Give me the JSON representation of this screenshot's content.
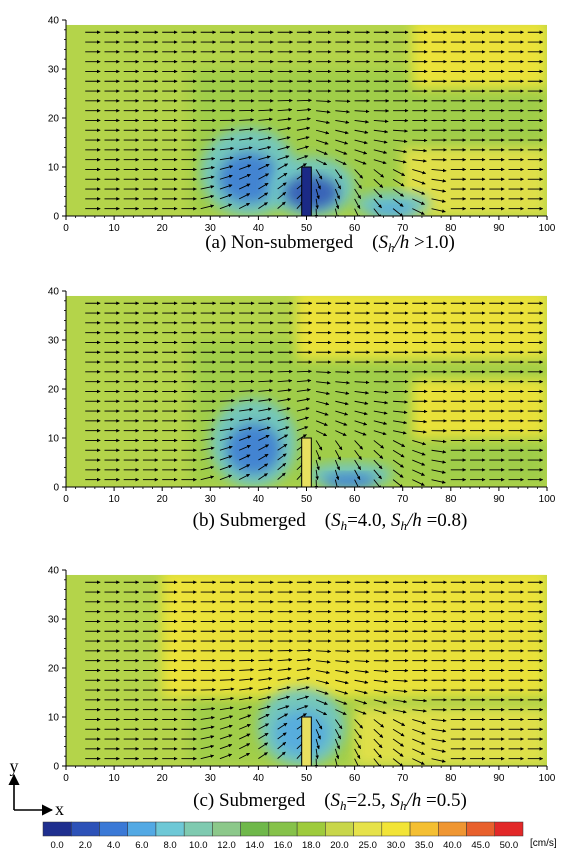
{
  "panels": [
    {
      "caption": {
        "pre": "(a) Non-submerged　(",
        "var": "S",
        "sub": "h",
        "post_var": "/h",
        "rest": " >1.0)"
      },
      "chart_data": {
        "type": "heatmap",
        "plot": "velocity vector field over contour",
        "xlim": [
          0,
          100
        ],
        "ylim": [
          0,
          40
        ],
        "xticks": [
          0,
          10,
          20,
          30,
          40,
          50,
          60,
          70,
          80,
          90,
          100
        ],
        "yticks": [
          0,
          10,
          20,
          30,
          40
        ],
        "obstacle": {
          "x": [
            49,
            51
          ],
          "y": [
            0,
            10
          ],
          "color": "#1b2a86"
        },
        "low_zones": [
          {
            "x": [
              28,
              48
            ],
            "y": [
              0,
              18
            ],
            "value": 4
          },
          {
            "x": [
              42,
              60
            ],
            "y": [
              0,
              12
            ],
            "value": 2
          },
          {
            "x": [
              60,
              76
            ],
            "y": [
              0,
              5
            ],
            "value": 6
          }
        ],
        "high_zones": [
          {
            "x": [
              72,
              100
            ],
            "y": [
              26,
              40
            ],
            "value": 30
          },
          {
            "x": [
              70,
              100
            ],
            "y": [
              0,
              14
            ],
            "value": 25
          }
        ]
      }
    },
    {
      "caption": {
        "pre": "(b) Submerged　(",
        "var": "S",
        "sub": "h",
        "mid": "=4.0, ",
        "var2": "S",
        "sub2": "h",
        "post_var": "/h",
        "rest": " =0.8)"
      },
      "chart_data": {
        "type": "heatmap",
        "plot": "velocity vector field over contour",
        "xlim": [
          0,
          100
        ],
        "ylim": [
          0,
          40
        ],
        "xticks": [
          0,
          10,
          20,
          30,
          40,
          50,
          60,
          70,
          80,
          90,
          100
        ],
        "yticks": [
          0,
          10,
          20,
          30,
          40
        ],
        "obstacle": {
          "x": [
            49,
            51
          ],
          "y": [
            0,
            10
          ],
          "color": "#e8e060"
        },
        "low_zones": [
          {
            "x": [
              30,
              48
            ],
            "y": [
              0,
              18
            ],
            "value": 5
          },
          {
            "x": [
              50,
              68
            ],
            "y": [
              0,
              5
            ],
            "value": 4
          }
        ],
        "high_zones": [
          {
            "x": [
              48,
              100
            ],
            "y": [
              26,
              40
            ],
            "value": 30
          },
          {
            "x": [
              72,
              100
            ],
            "y": [
              10,
              22
            ],
            "value": 30
          }
        ]
      }
    },
    {
      "caption": {
        "pre": "(c) Submerged　(",
        "var": "S",
        "sub": "h",
        "mid": "=2.5, ",
        "var2": "S",
        "sub2": "h",
        "post_var": "/h",
        "rest": " =0.5)"
      },
      "chart_data": {
        "type": "heatmap",
        "plot": "velocity vector field over contour",
        "xlim": [
          0,
          100
        ],
        "ylim": [
          0,
          40
        ],
        "xticks": [
          0,
          10,
          20,
          30,
          40,
          50,
          60,
          70,
          80,
          90,
          100
        ],
        "yticks": [
          0,
          10,
          20,
          30,
          40
        ],
        "obstacle": {
          "x": [
            49,
            51
          ],
          "y": [
            0,
            10
          ],
          "color": "#e8e060"
        },
        "low_zones": [
          {
            "x": [
              40,
              58
            ],
            "y": [
              0,
              16
            ],
            "value": 6
          }
        ],
        "high_zones": [
          {
            "x": [
              20,
              100
            ],
            "y": [
              14,
              40
            ],
            "value": 30
          },
          {
            "x": [
              60,
              100
            ],
            "y": [
              0,
              12
            ],
            "value": 25
          }
        ]
      }
    }
  ],
  "colorbar": {
    "labels": [
      "0.0",
      "2.0",
      "4.0",
      "6.0",
      "8.0",
      "10.0",
      "12.0",
      "14.0",
      "16.0",
      "18.0",
      "20.0",
      "25.0",
      "30.0",
      "35.0",
      "40.0",
      "45.0",
      "50.0"
    ],
    "colors": [
      "#1f2f8f",
      "#2d52b8",
      "#3b79d6",
      "#53a9e4",
      "#6ec8d6",
      "#7fcab0",
      "#8cc88a",
      "#6fb84a",
      "#86c24a",
      "#9ecb3c",
      "#c8d64a",
      "#e6e24a",
      "#f2e437",
      "#f4bf32",
      "#ef9632",
      "#e8602c",
      "#e22828"
    ],
    "unit": "[cm/s]"
  },
  "axes_indicator": {
    "x": "x",
    "y": "y"
  }
}
